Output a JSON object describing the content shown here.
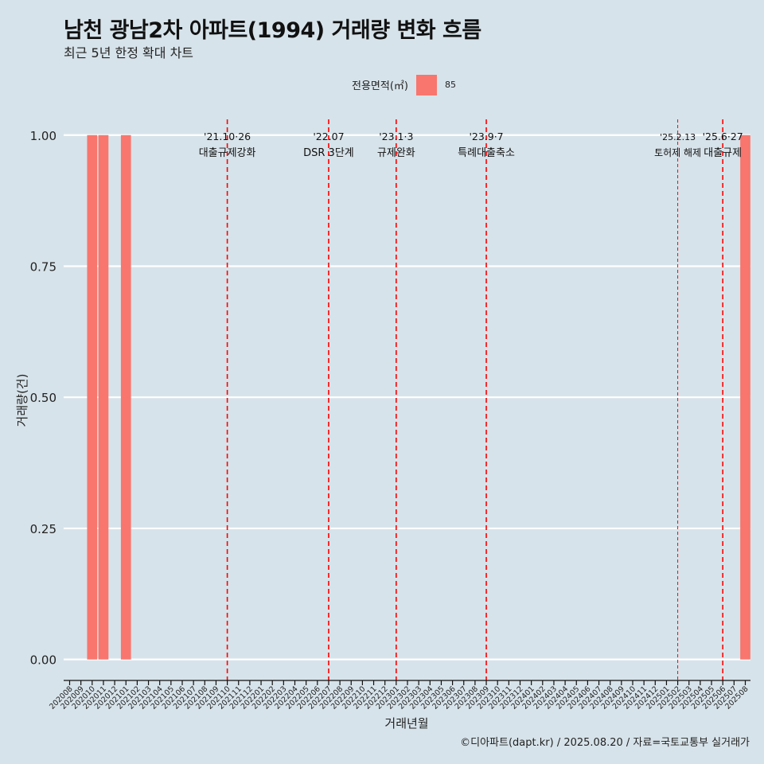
{
  "title": "남천 광남2차 아파트(1994) 거래량 변화 흐름",
  "subtitle": "최근 5년 한정 확대 차트",
  "legend": {
    "title": "전용면적(㎡)",
    "items": [
      {
        "label": "85",
        "color": "#F8766D"
      }
    ]
  },
  "caption": "©디아파트(dapt.kr) / 2025.08.20 / 자료=국토교통부 실거래가",
  "chart_data": {
    "type": "bar",
    "xlabel": "거래년월",
    "ylabel": "거래량(건)",
    "ylim": [
      -0.04,
      1.03
    ],
    "yticks": [
      0.0,
      0.25,
      0.5,
      0.75,
      1.0
    ],
    "ytick_labels": [
      "0.00",
      "0.25",
      "0.50",
      "0.75",
      "1.00"
    ],
    "grid": "horizontal major",
    "legend_position": "top",
    "categories": [
      "202008",
      "202009",
      "202010",
      "202011",
      "202012",
      "202101",
      "202102",
      "202103",
      "202104",
      "202105",
      "202106",
      "202107",
      "202108",
      "202109",
      "202110",
      "202111",
      "202112",
      "202201",
      "202202",
      "202203",
      "202204",
      "202205",
      "202206",
      "202207",
      "202208",
      "202209",
      "202210",
      "202211",
      "202212",
      "202301",
      "202302",
      "202303",
      "202304",
      "202305",
      "202306",
      "202307",
      "202308",
      "202309",
      "202310",
      "202311",
      "202312",
      "202401",
      "202402",
      "202403",
      "202404",
      "202405",
      "202406",
      "202407",
      "202408",
      "202409",
      "202410",
      "202411",
      "202412",
      "202501",
      "202502",
      "202503",
      "202504",
      "202505",
      "202506",
      "202507",
      "202508"
    ],
    "series": [
      {
        "name": "85",
        "color": "#F8766D",
        "bars": [
          {
            "x": "202010",
            "y": 1
          },
          {
            "x": "202011",
            "y": 1
          },
          {
            "x": "202101",
            "y": 1
          },
          {
            "x": "202508",
            "y": 1
          }
        ]
      }
    ],
    "annotations": [
      {
        "x": "202110",
        "date": "'21.10·26",
        "label": "대출규제강화",
        "style": "dashed-red"
      },
      {
        "x": "202207",
        "date": "'22.07",
        "label": "DSR 3단계",
        "style": "dashed-red"
      },
      {
        "x": "202301",
        "date": "'23.1·3",
        "label": "규제완화",
        "style": "dashed-red"
      },
      {
        "x": "202309",
        "date": "'23.9·7",
        "label": "특례대출축소",
        "style": "dashed-red"
      },
      {
        "x": "202502",
        "date": "'25.2.13",
        "label": "토허제 해제",
        "style": "dashed-red-thin"
      },
      {
        "x": "202506",
        "date": "'25.6·27",
        "label": "대출규제",
        "style": "dashed-red"
      }
    ]
  }
}
